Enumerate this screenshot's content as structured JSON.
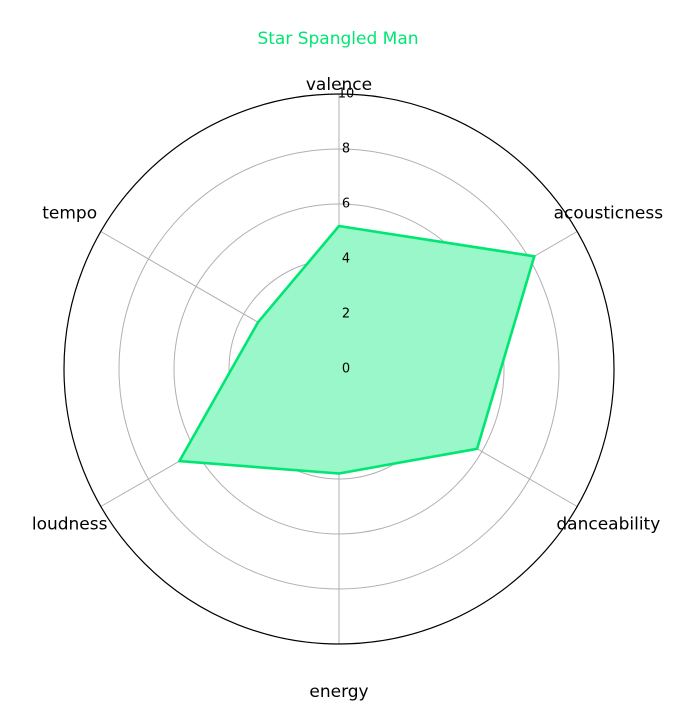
{
  "chart_data": {
    "type": "radar",
    "title": "Star Spangled Man",
    "axes": [
      "valence",
      "acousticness",
      "danceability",
      "energy",
      "loudness",
      "tempo"
    ],
    "series": [
      {
        "values": [
          5.2,
          8.2,
          5.8,
          3.8,
          6.7,
          3.4
        ],
        "color": "#00e673"
      }
    ],
    "rlim": [
      0,
      10
    ],
    "rticks": [
      0,
      2,
      4,
      6,
      8,
      10
    ],
    "grid": true,
    "colors": {
      "series_line": "#00e673",
      "series_fill": "#99f7c9",
      "grid": "#b0b0b0",
      "frame": "#000000"
    }
  }
}
